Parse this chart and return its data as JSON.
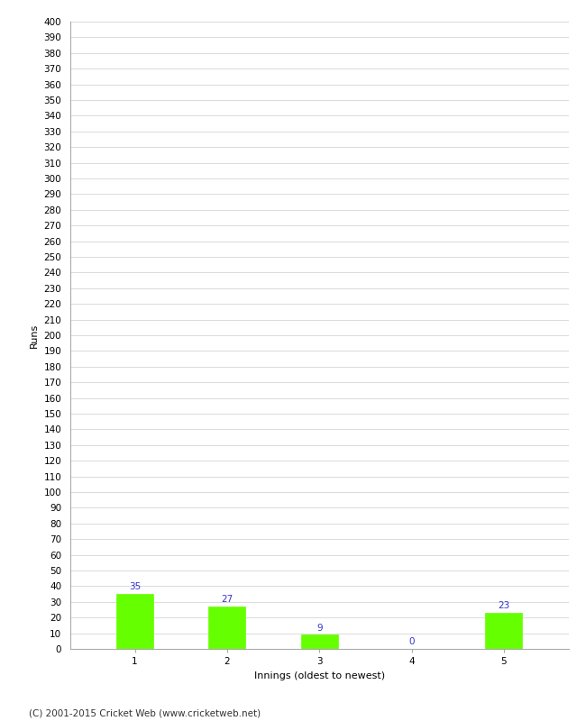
{
  "categories": [
    "1",
    "2",
    "3",
    "4",
    "5"
  ],
  "values": [
    35,
    27,
    9,
    0,
    23
  ],
  "bar_color": "#66ff00",
  "bar_edge_color": "#66ff00",
  "label_color": "#3333cc",
  "ylabel": "Runs",
  "xlabel": "Innings (oldest to newest)",
  "ylim": [
    0,
    400
  ],
  "ytick_step": 10,
  "footer": "(C) 2001-2015 Cricket Web (www.cricketweb.net)",
  "background_color": "#ffffff",
  "grid_color": "#cccccc",
  "label_fontsize": 7.5,
  "axis_tick_fontsize": 7.5,
  "axis_label_fontsize": 8,
  "footer_fontsize": 7.5
}
